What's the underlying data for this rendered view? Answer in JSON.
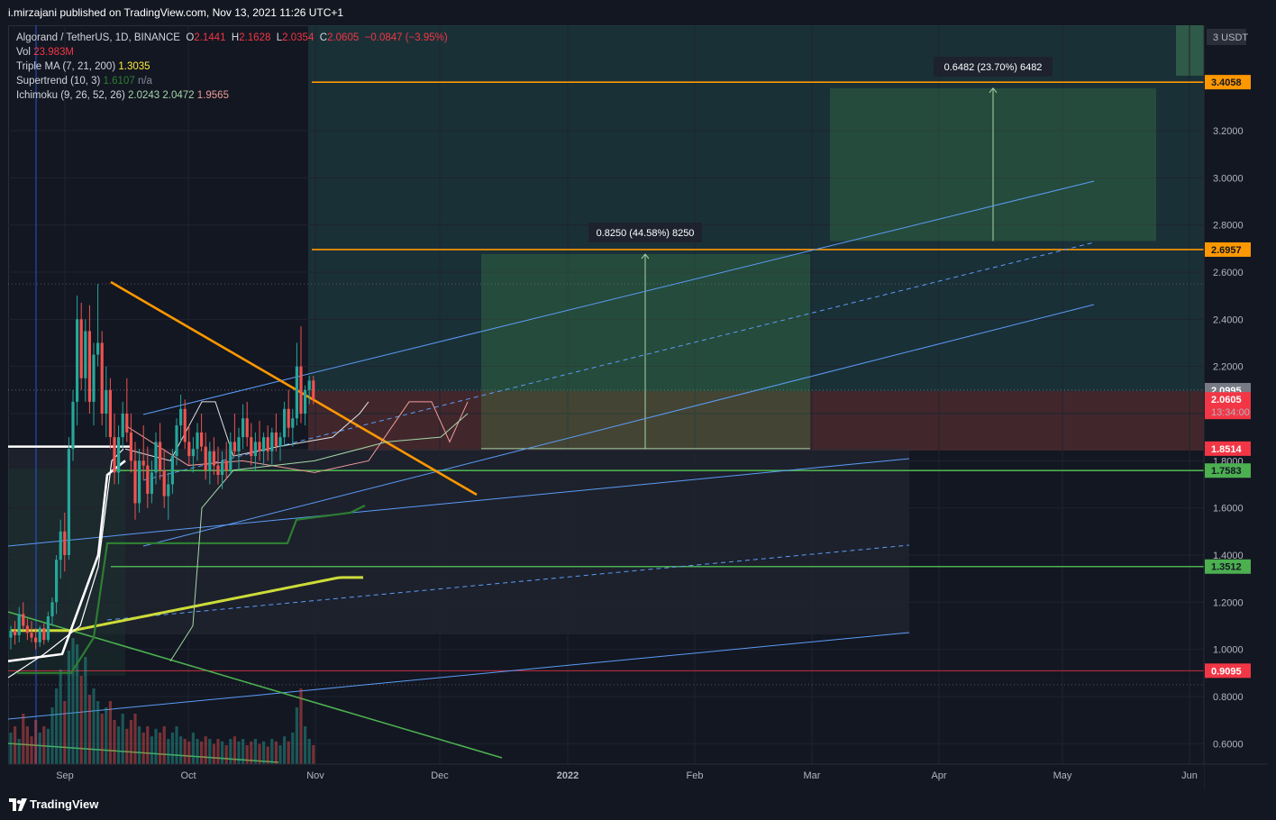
{
  "publish_text": "i.mirzajani published on TradingView.com, Nov 13, 2021 11:26 UTC+1",
  "brand": "TradingView",
  "legend": {
    "symbol": "Algorand / TetherUS, 1D, BINANCE",
    "o_label": "O",
    "o_value": "2.1441",
    "h_label": "H",
    "h_value": "2.1628",
    "l_label": "L",
    "l_value": "2.0354",
    "c_label": "C",
    "c_value": "2.0605",
    "change": "−0.0847 (−3.95%)",
    "vol_label": "Vol",
    "vol_value": "23.983M",
    "triple_ma_label": "Triple MA (7, 21, 200)",
    "triple_ma_value": "1.3035",
    "supertrend_label": "Supertrend (10, 3)",
    "supertrend_value": "1.6107",
    "supertrend_value2": "n/a",
    "ichimoku_label": "Ichimoku (9, 26, 52, 26)",
    "ichimoku_v1": "2.0243",
    "ichimoku_v2": "2.0472",
    "ichimoku_v3": "1.9565"
  },
  "chart_data": {
    "type": "candlestick",
    "symbol": "ALGOUSDT",
    "timeframe": "1D",
    "currency": "USDT",
    "y_axis_unit_label": "3 USDT",
    "yticks": [
      "0.6000",
      "0.8000",
      "1.0000",
      "1.2000",
      "1.4000",
      "1.6000",
      "1.8000",
      "2.0000",
      "2.2000",
      "2.4000",
      "2.6000",
      "2.8000",
      "3.0000",
      "3.2000"
    ],
    "xticks": [
      "Sep",
      "Oct",
      "Nov",
      "Dec",
      "2022",
      "Feb",
      "Mar",
      "Apr",
      "May",
      "Jun"
    ],
    "ylim": [
      0.52,
      3.75
    ],
    "price_tags": [
      {
        "value": 3.4058,
        "label": "3.4058",
        "bg": "#ff9800",
        "fg": "#131722"
      },
      {
        "value": 2.6957,
        "label": "2.6957",
        "bg": "#ff9800",
        "fg": "#131722"
      },
      {
        "value": 2.0995,
        "label": "2.0995",
        "bg": "#787b86",
        "fg": "#ffffff"
      },
      {
        "value": 2.0605,
        "label": "2.0605",
        "bg": "#f23645",
        "fg": "#ffffff",
        "countdown": "13:34:00"
      },
      {
        "value": 1.8514,
        "label": "1.8514",
        "bg": "#f23645",
        "fg": "#ffffff"
      },
      {
        "value": 1.7583,
        "label": "1.7583",
        "bg": "#4caf50",
        "fg": "#131722"
      },
      {
        "value": 1.3512,
        "label": "1.3512",
        "bg": "#4caf50",
        "fg": "#131722"
      },
      {
        "value": 0.9095,
        "label": "0.9095",
        "bg": "#f23645",
        "fg": "#ffffff"
      }
    ],
    "measurements": [
      {
        "label": "0.8250 (44.58%) 8250",
        "from": 1.8514,
        "to": 2.6764
      },
      {
        "label": "0.6482 (23.70%) 6482",
        "from": 2.732,
        "to": 3.3802
      }
    ],
    "horizontal_levels": [
      {
        "value": 3.4058,
        "color": "#ff9800"
      },
      {
        "value": 2.6957,
        "color": "#ff9800"
      },
      {
        "value": 1.7583,
        "color": "#4caf50"
      },
      {
        "value": 1.3512,
        "color": "#4caf50"
      },
      {
        "value": 0.9095,
        "color": "#f23645"
      }
    ],
    "last_close": 2.0605,
    "candles_approx": [
      [
        1.05,
        1.1,
        1.0,
        1.08
      ],
      [
        1.08,
        1.12,
        1.02,
        1.06
      ],
      [
        1.06,
        1.18,
        1.03,
        1.15
      ],
      [
        1.15,
        1.2,
        1.08,
        1.1
      ],
      [
        1.1,
        1.13,
        1.04,
        1.07
      ],
      [
        1.07,
        1.12,
        1.03,
        1.05
      ],
      [
        1.05,
        1.09,
        1.0,
        1.03
      ],
      [
        1.03,
        1.1,
        1.01,
        1.09
      ],
      [
        1.09,
        1.11,
        1.02,
        1.04
      ],
      [
        1.04,
        1.16,
        1.03,
        1.14
      ],
      [
        1.14,
        1.22,
        1.1,
        1.2
      ],
      [
        1.2,
        1.4,
        1.15,
        1.38
      ],
      [
        1.38,
        1.55,
        1.3,
        1.5
      ],
      [
        1.5,
        1.58,
        1.33,
        1.4
      ],
      [
        1.4,
        1.9,
        1.38,
        1.85
      ],
      [
        1.85,
        2.1,
        1.8,
        2.05
      ],
      [
        2.05,
        2.5,
        1.95,
        2.4
      ],
      [
        2.4,
        2.47,
        2.1,
        2.15
      ],
      [
        2.15,
        2.4,
        2.05,
        2.35
      ],
      [
        2.35,
        2.46,
        2.0,
        2.05
      ],
      [
        2.05,
        2.3,
        1.95,
        2.25
      ],
      [
        2.25,
        2.55,
        2.2,
        2.3
      ],
      [
        2.3,
        2.35,
        1.95,
        2.0
      ],
      [
        2.0,
        2.2,
        1.9,
        2.1
      ],
      [
        2.1,
        2.15,
        1.85,
        1.9
      ],
      [
        1.9,
        2.0,
        1.7,
        1.75
      ],
      [
        1.75,
        1.95,
        1.7,
        1.9
      ],
      [
        1.9,
        2.05,
        1.85,
        2.0
      ],
      [
        2.0,
        2.15,
        1.88,
        1.92
      ],
      [
        1.92,
        2.0,
        1.75,
        1.8
      ],
      [
        1.8,
        1.88,
        1.55,
        1.62
      ],
      [
        1.62,
        1.85,
        1.58,
        1.8
      ],
      [
        1.8,
        1.95,
        1.72,
        1.78
      ],
      [
        1.78,
        1.86,
        1.6,
        1.66
      ],
      [
        1.66,
        1.8,
        1.62,
        1.75
      ],
      [
        1.75,
        1.92,
        1.7,
        1.88
      ],
      [
        1.88,
        1.96,
        1.72,
        1.76
      ],
      [
        1.76,
        1.85,
        1.6,
        1.65
      ],
      [
        1.65,
        1.75,
        1.55,
        1.7
      ],
      [
        1.7,
        1.85,
        1.66,
        1.82
      ],
      [
        1.82,
        1.98,
        1.78,
        1.95
      ],
      [
        1.95,
        2.08,
        1.88,
        2.02
      ],
      [
        2.02,
        2.06,
        1.85,
        1.88
      ],
      [
        1.88,
        1.95,
        1.78,
        1.82
      ],
      [
        1.82,
        1.9,
        1.75,
        1.85
      ],
      [
        1.85,
        1.96,
        1.8,
        1.92
      ],
      [
        1.92,
        2.0,
        1.84,
        1.86
      ],
      [
        1.86,
        1.92,
        1.72,
        1.76
      ],
      [
        1.76,
        1.88,
        1.7,
        1.84
      ],
      [
        1.84,
        1.9,
        1.74,
        1.78
      ],
      [
        1.78,
        1.86,
        1.7,
        1.74
      ],
      [
        1.74,
        1.84,
        1.68,
        1.8
      ],
      [
        1.8,
        1.88,
        1.72,
        1.76
      ],
      [
        1.76,
        1.92,
        1.74,
        1.88
      ],
      [
        1.88,
        2.0,
        1.82,
        1.84
      ],
      [
        1.84,
        1.94,
        1.76,
        1.9
      ],
      [
        1.9,
        2.04,
        1.85,
        1.98
      ],
      [
        1.98,
        2.05,
        1.86,
        1.9
      ],
      [
        1.9,
        1.96,
        1.78,
        1.82
      ],
      [
        1.82,
        1.92,
        1.76,
        1.88
      ],
      [
        1.88,
        1.97,
        1.8,
        1.84
      ],
      [
        1.84,
        1.92,
        1.78,
        1.9
      ],
      [
        1.9,
        1.95,
        1.8,
        1.84
      ],
      [
        1.84,
        1.94,
        1.78,
        1.92
      ],
      [
        1.92,
        2.0,
        1.84,
        1.86
      ],
      [
        1.86,
        1.92,
        1.8,
        1.9
      ],
      [
        1.9,
        2.05,
        1.86,
        2.02
      ],
      [
        2.02,
        2.1,
        1.9,
        1.94
      ],
      [
        1.94,
        2.02,
        1.86,
        1.98
      ],
      [
        1.98,
        2.3,
        1.95,
        2.2
      ],
      [
        2.2,
        2.37,
        1.96,
        2.0
      ],
      [
        2.0,
        2.12,
        1.95,
        2.1
      ],
      [
        2.1,
        2.16,
        2.04,
        2.14
      ],
      [
        2.14,
        2.16,
        2.04,
        2.06
      ]
    ]
  }
}
